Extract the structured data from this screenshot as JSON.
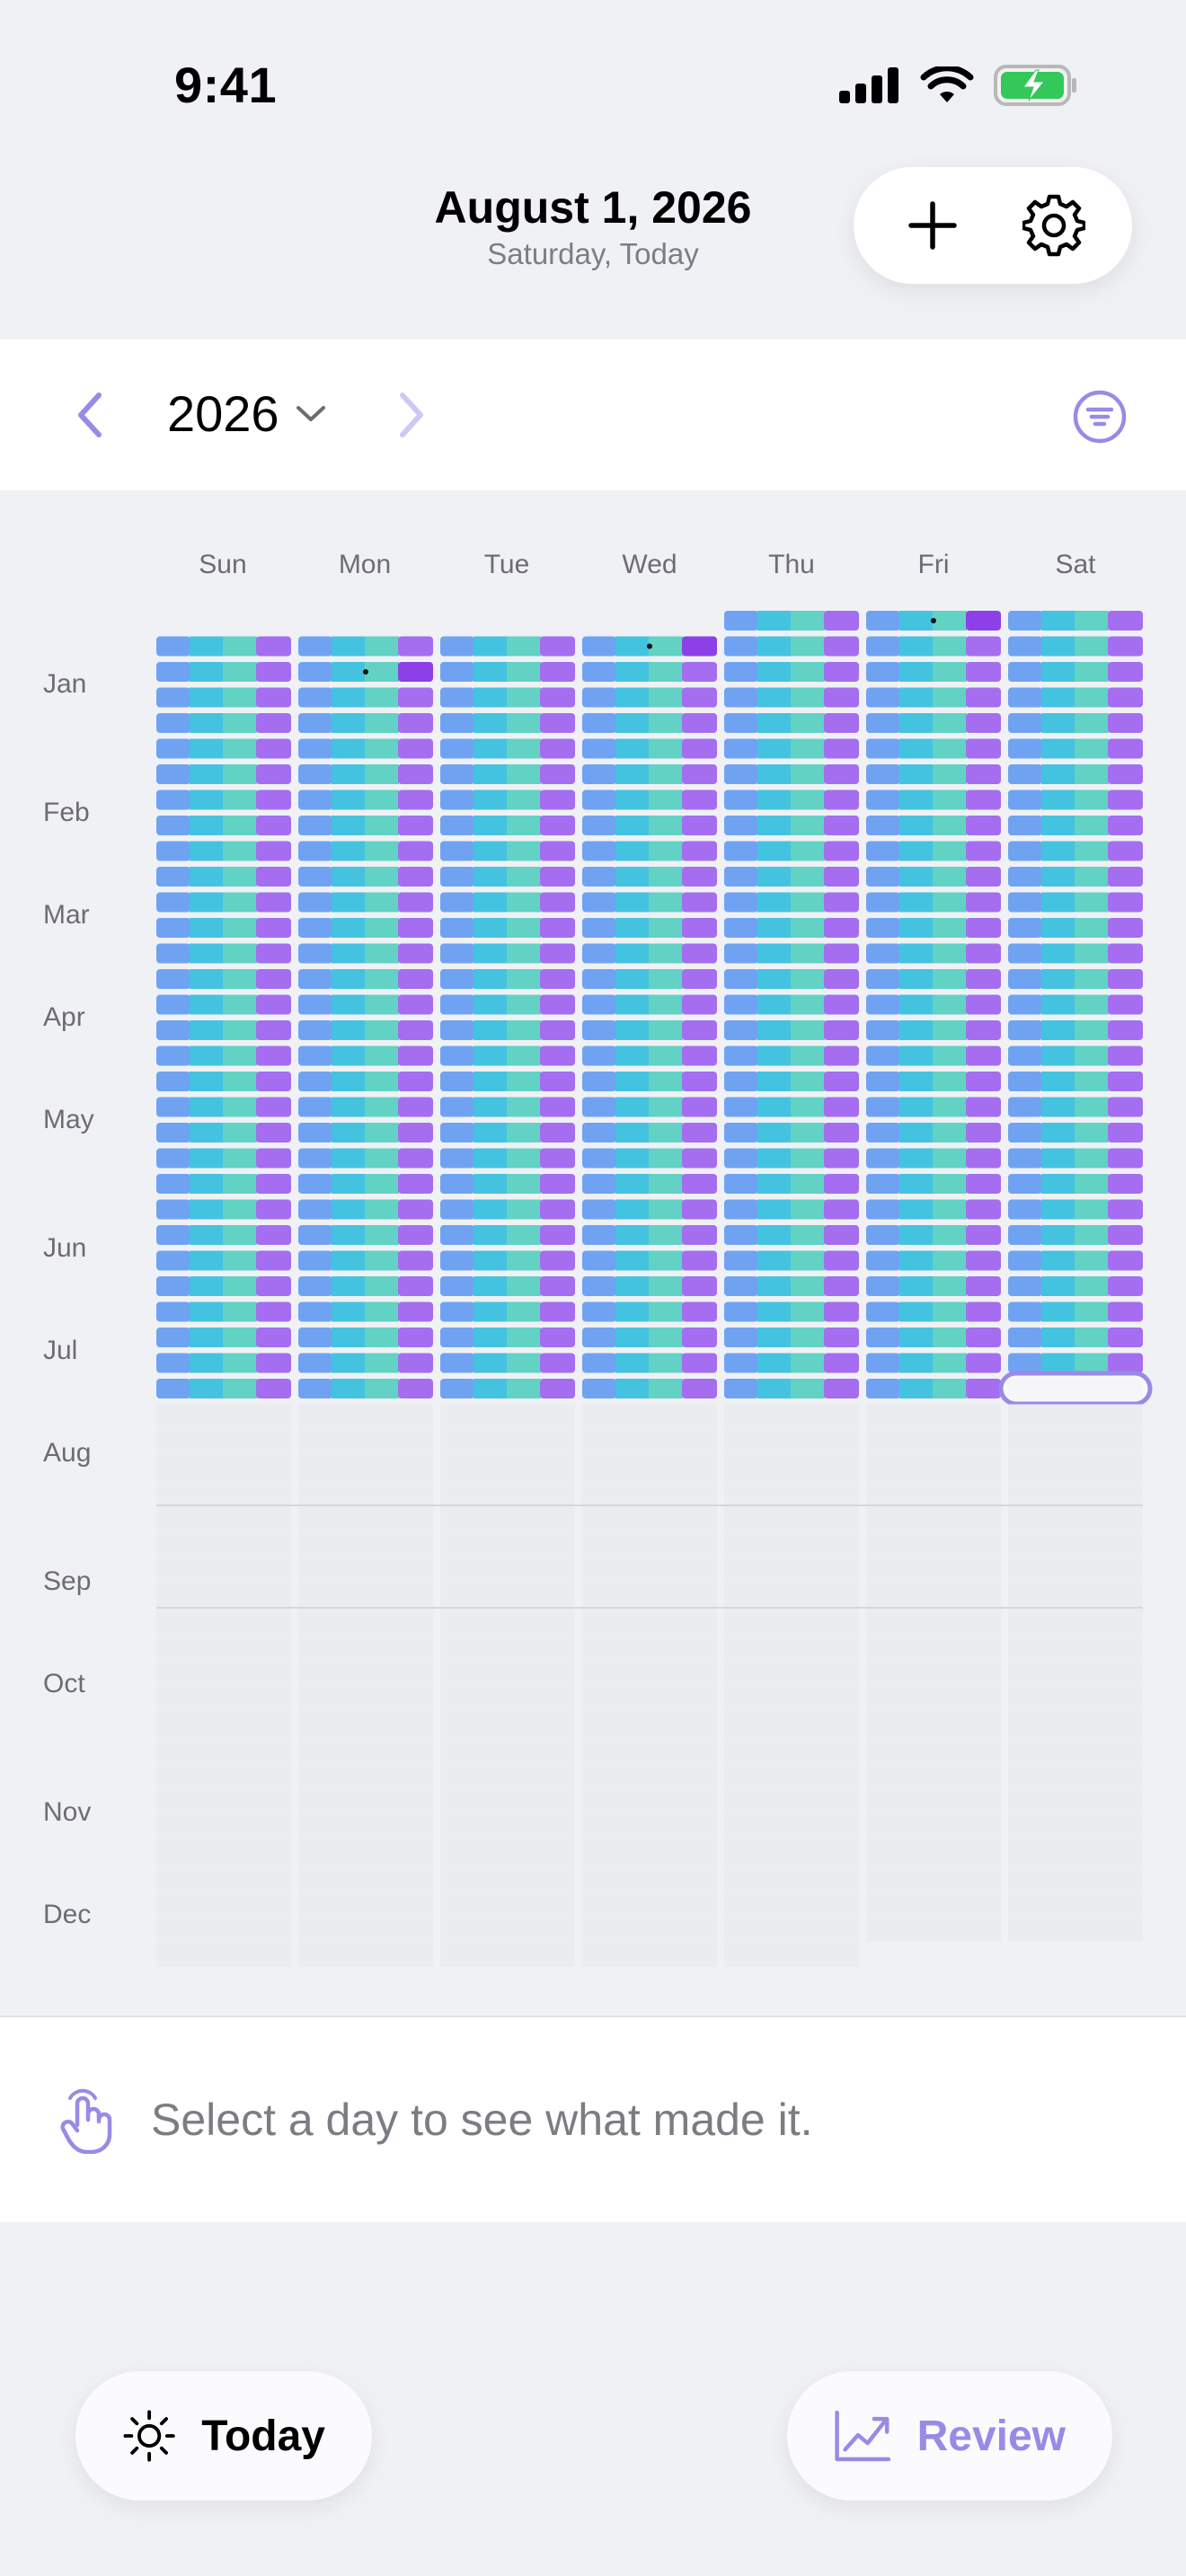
{
  "status_bar": {
    "time": "9:41"
  },
  "header": {
    "date": "August 1, 2026",
    "subtitle": "Saturday, Today"
  },
  "year_nav": {
    "year": "2026"
  },
  "calendar": {
    "weekdays": [
      "Sun",
      "Mon",
      "Tue",
      "Wed",
      "Thu",
      "Fri",
      "Sat"
    ],
    "months": [
      "Jan",
      "Feb",
      "Mar",
      "Apr",
      "May",
      "Jun",
      "Jul",
      "Aug",
      "Sep",
      "Oct",
      "Nov",
      "Dec"
    ],
    "first_weekday_of_year": 4,
    "selected_date": "2026-08-01",
    "filled_through": "2026-07-31",
    "marked_dates": [
      "2026-01-02",
      "2026-01-07",
      "2026-01-12"
    ],
    "segment_colors": [
      "#6fa3f2",
      "#44c3e0",
      "#62d2c4",
      "#a56df0"
    ],
    "accent_color": "#9a8ae6"
  },
  "hint": {
    "text": "Select a day to see what made it."
  },
  "bottom_nav": {
    "today_label": "Today",
    "review_label": "Review"
  }
}
